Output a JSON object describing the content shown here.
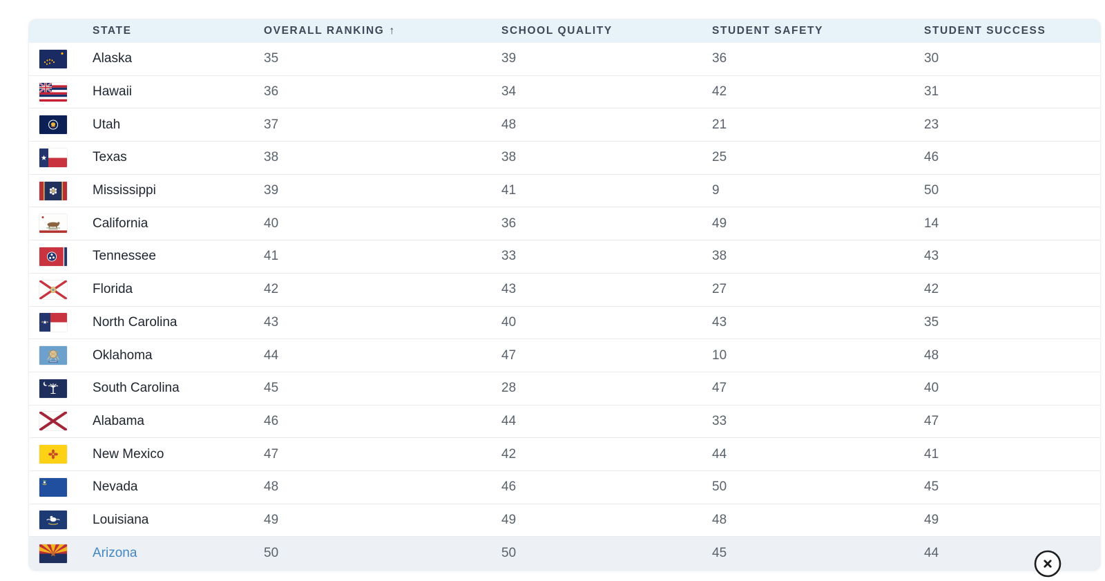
{
  "colors": {
    "header_bg": "#e8f2f9",
    "header_text": "#3e4857",
    "row_border": "#e8eaee",
    "state_text": "#20262f",
    "value_text": "#5a626c",
    "selected_row_bg": "#edf0f4",
    "link_blue": "#4387c2",
    "close_stroke": "#1d1d1f"
  },
  "table": {
    "headers": [
      {
        "id": "state",
        "label": "STATE"
      },
      {
        "id": "overall",
        "label": "OVERALL RANKING",
        "sort": "asc",
        "sort_icon": "↑"
      },
      {
        "id": "quality",
        "label": "SCHOOL QUALITY"
      },
      {
        "id": "safety",
        "label": "STUDENT SAFETY"
      },
      {
        "id": "success",
        "label": "STUDENT SUCCESS"
      }
    ],
    "rows": [
      {
        "state": "Alaska",
        "flag_icon": "alaska-flag-icon",
        "overall": "35",
        "quality": "39",
        "safety": "36",
        "success": "30",
        "highlighted": false
      },
      {
        "state": "Hawaii",
        "flag_icon": "hawaii-flag-icon",
        "overall": "36",
        "quality": "34",
        "safety": "42",
        "success": "31",
        "highlighted": false
      },
      {
        "state": "Utah",
        "flag_icon": "utah-flag-icon",
        "overall": "37",
        "quality": "48",
        "safety": "21",
        "success": "23",
        "highlighted": false
      },
      {
        "state": "Texas",
        "flag_icon": "texas-flag-icon",
        "overall": "38",
        "quality": "38",
        "safety": "25",
        "success": "46",
        "highlighted": false
      },
      {
        "state": "Mississippi",
        "flag_icon": "mississippi-flag-icon",
        "overall": "39",
        "quality": "41",
        "safety": "9",
        "success": "50",
        "highlighted": false
      },
      {
        "state": "California",
        "flag_icon": "california-flag-icon",
        "overall": "40",
        "quality": "36",
        "safety": "49",
        "success": "14",
        "highlighted": false
      },
      {
        "state": "Tennessee",
        "flag_icon": "tennessee-flag-icon",
        "overall": "41",
        "quality": "33",
        "safety": "38",
        "success": "43",
        "highlighted": false
      },
      {
        "state": "Florida",
        "flag_icon": "florida-flag-icon",
        "overall": "42",
        "quality": "43",
        "safety": "27",
        "success": "42",
        "highlighted": false
      },
      {
        "state": "North Carolina",
        "flag_icon": "north-carolina-flag-icon",
        "overall": "43",
        "quality": "40",
        "safety": "43",
        "success": "35",
        "highlighted": false
      },
      {
        "state": "Oklahoma",
        "flag_icon": "oklahoma-flag-icon",
        "overall": "44",
        "quality": "47",
        "safety": "10",
        "success": "48",
        "highlighted": false
      },
      {
        "state": "South Carolina",
        "flag_icon": "south-carolina-flag-icon",
        "overall": "45",
        "quality": "28",
        "safety": "47",
        "success": "40",
        "highlighted": false
      },
      {
        "state": "Alabama",
        "flag_icon": "alabama-flag-icon",
        "overall": "46",
        "quality": "44",
        "safety": "33",
        "success": "47",
        "highlighted": false
      },
      {
        "state": "New Mexico",
        "flag_icon": "new-mexico-flag-icon",
        "overall": "47",
        "quality": "42",
        "safety": "44",
        "success": "41",
        "highlighted": false
      },
      {
        "state": "Nevada",
        "flag_icon": "nevada-flag-icon",
        "overall": "48",
        "quality": "46",
        "safety": "50",
        "success": "45",
        "highlighted": false
      },
      {
        "state": "Louisiana",
        "flag_icon": "louisiana-flag-icon",
        "overall": "49",
        "quality": "49",
        "safety": "48",
        "success": "49",
        "highlighted": false
      },
      {
        "state": "Arizona",
        "flag_icon": "arizona-flag-icon",
        "overall": "50",
        "quality": "50",
        "safety": "45",
        "success": "44",
        "highlighted": true
      }
    ]
  },
  "close_button": {
    "icon": "close-icon",
    "glyph": "×"
  }
}
